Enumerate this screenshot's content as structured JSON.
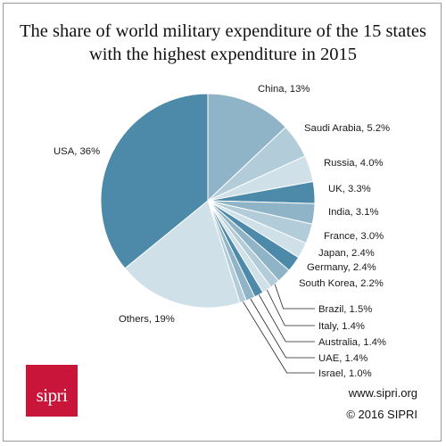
{
  "title_line1": "The share of world military expenditure of the 15 states",
  "title_line2": "with the highest expenditure in 2015",
  "footer": {
    "url": "www.sipri.org",
    "copyright": "© 2016 SIPRI",
    "logo_text": "sipri"
  },
  "colors": {
    "dark": "#4d89a8",
    "light": "#cfe0e8",
    "mid": "#8fb3c7",
    "logo": "#c9153a"
  },
  "chart_data": {
    "type": "pie",
    "title": "The share of world military expenditure of the 15 states with the highest expenditure in 2015",
    "unit": "%",
    "slices": [
      {
        "name": "China",
        "value": 13,
        "label": "China, 13%"
      },
      {
        "name": "Saudi Arabia",
        "value": 5.2,
        "label": "Saudi Arabia, 5.2%"
      },
      {
        "name": "Russia",
        "value": 4.0,
        "label": "Russia, 4.0%"
      },
      {
        "name": "UK",
        "value": 3.3,
        "label": "UK, 3.3%"
      },
      {
        "name": "India",
        "value": 3.1,
        "label": "India, 3.1%"
      },
      {
        "name": "France",
        "value": 3.0,
        "label": "France, 3.0%"
      },
      {
        "name": "Japan",
        "value": 2.4,
        "label": "Japan, 2.4%"
      },
      {
        "name": "Germany",
        "value": 2.4,
        "label": "Germany, 2.4%"
      },
      {
        "name": "South Korea",
        "value": 2.2,
        "label": "South Korea, 2.2%"
      },
      {
        "name": "Brazil",
        "value": 1.5,
        "label": "Brazil, 1.5%"
      },
      {
        "name": "Italy",
        "value": 1.4,
        "label": "Italy, 1.4%"
      },
      {
        "name": "Australia",
        "value": 1.4,
        "label": "Australia, 1.4%"
      },
      {
        "name": "UAE",
        "value": 1.4,
        "label": "UAE, 1.4%"
      },
      {
        "name": "Israel",
        "value": 1.0,
        "label": "Israel, 1.0%"
      },
      {
        "name": "Others",
        "value": 19,
        "label": "Others, 19%"
      },
      {
        "name": "USA",
        "value": 36,
        "label": "USA, 36%"
      }
    ]
  }
}
